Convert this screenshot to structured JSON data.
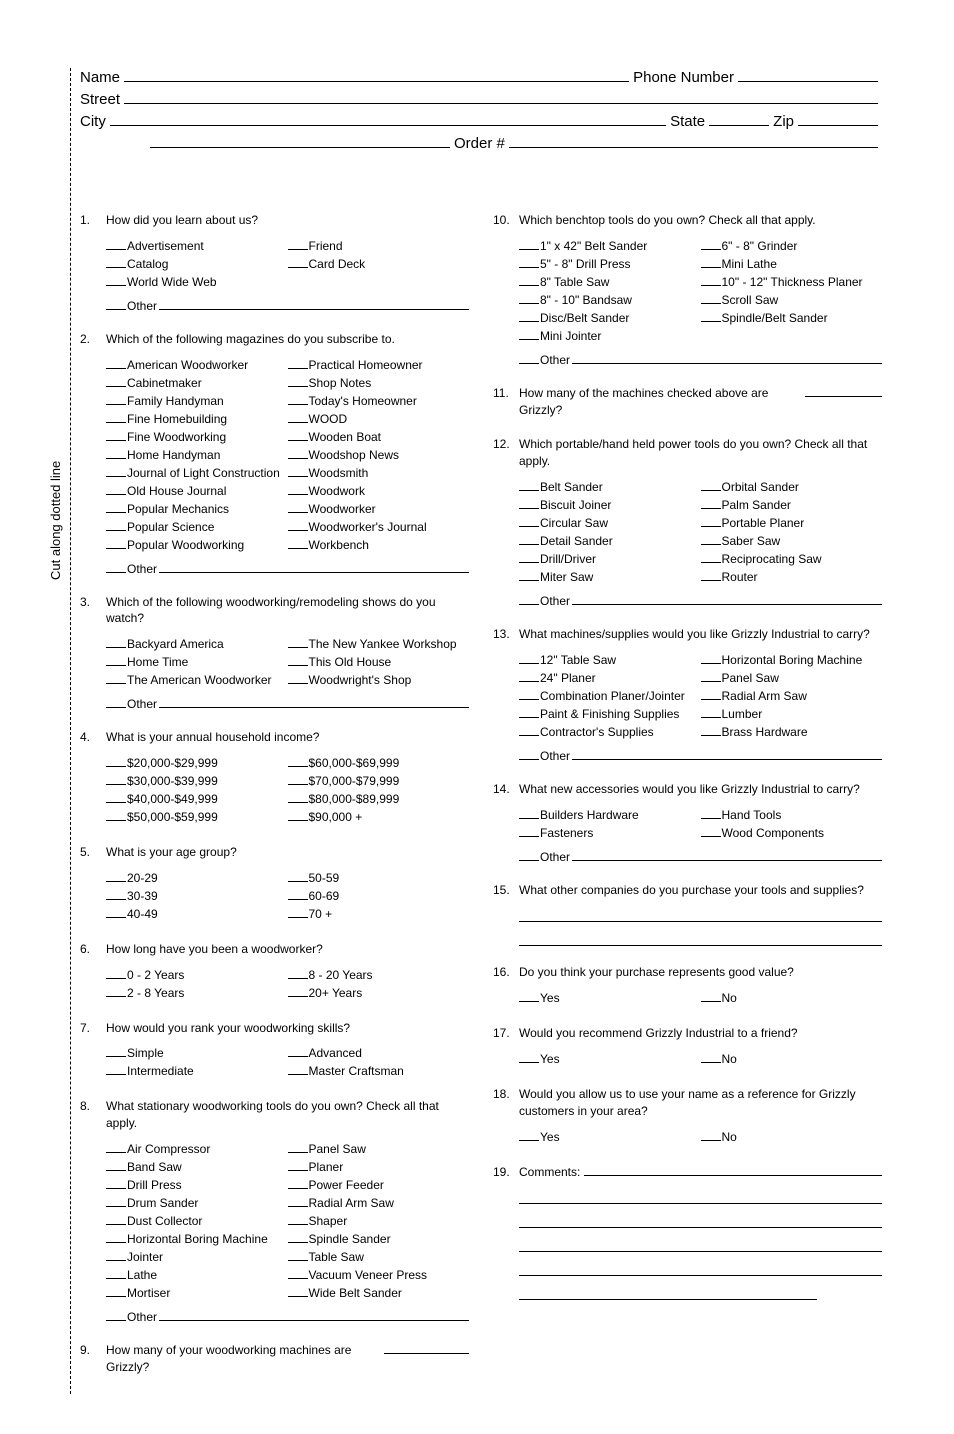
{
  "cut_label": "Cut along dotted line",
  "header": {
    "name": "Name",
    "phone": "Phone Number",
    "street": "Street",
    "city": "City",
    "state": "State",
    "zip": "Zip",
    "order": "Order #"
  },
  "q1": {
    "num": "1.",
    "text": "How did you learn about us?",
    "left": [
      "Advertisement",
      "Catalog",
      "World Wide Web"
    ],
    "right": [
      "Friend",
      "Card Deck"
    ],
    "other": "Other"
  },
  "q2": {
    "num": "2.",
    "text": "Which of the following magazines do you subscribe to.",
    "left": [
      "American Woodworker",
      "Cabinetmaker",
      "Family Handyman",
      "Fine Homebuilding",
      "Fine Woodworking",
      "Home Handyman",
      "Journal of Light Construction",
      "Old House Journal",
      "Popular Mechanics",
      "Popular Science",
      "Popular Woodworking"
    ],
    "right": [
      "Practical Homeowner",
      "Shop Notes",
      "Today's Homeowner",
      "WOOD",
      "Wooden Boat",
      "Woodshop News",
      "Woodsmith",
      "Woodwork",
      "Woodworker",
      "Woodworker's Journal",
      "Workbench"
    ],
    "other": "Other"
  },
  "q3": {
    "num": "3.",
    "text": "Which of the following woodworking/remodeling shows do you watch?",
    "left": [
      "Backyard America",
      "Home Time",
      "The American Woodworker"
    ],
    "right": [
      "The New Yankee Workshop",
      "This Old House",
      "Woodwright's Shop"
    ],
    "other": "Other"
  },
  "q4": {
    "num": "4.",
    "text": "What is your annual household income?",
    "left": [
      "$20,000-$29,999",
      "$30,000-$39,999",
      "$40,000-$49,999",
      "$50,000-$59,999"
    ],
    "right": [
      "$60,000-$69,999",
      "$70,000-$79,999",
      "$80,000-$89,999",
      "$90,000 +"
    ]
  },
  "q5": {
    "num": "5.",
    "text": "What is your age group?",
    "left": [
      "20-29",
      "30-39",
      "40-49"
    ],
    "right": [
      "50-59",
      "60-69",
      "70 +"
    ]
  },
  "q6": {
    "num": "6.",
    "text": "How long have you been a woodworker?",
    "left": [
      "0 - 2 Years",
      "2 - 8 Years"
    ],
    "right": [
      "8 - 20 Years",
      "20+ Years"
    ]
  },
  "q7": {
    "num": "7.",
    "text": "How would you rank your woodworking skills?",
    "left": [
      "Simple",
      "Intermediate"
    ],
    "right": [
      "Advanced",
      "Master Craftsman"
    ]
  },
  "q8": {
    "num": "8.",
    "text": "What stationary woodworking tools do you own? Check all that apply.",
    "left": [
      "Air Compressor",
      "Band Saw",
      "Drill Press",
      "Drum Sander",
      "Dust Collector",
      "Horizontal Boring Machine",
      "Jointer",
      "Lathe",
      "Mortiser"
    ],
    "right": [
      "Panel Saw",
      "Planer",
      "Power Feeder",
      "Radial Arm Saw",
      "Shaper",
      "Spindle Sander",
      "Table Saw",
      "Vacuum Veneer Press",
      "Wide Belt Sander"
    ],
    "other": "Other"
  },
  "q9": {
    "num": "9.",
    "text": "How many of your woodworking machines are Grizzly? "
  },
  "q10": {
    "num": "10.",
    "text": "Which benchtop tools do you own? Check all that apply.",
    "left": [
      "1\" x 42\" Belt Sander",
      "5\" - 8\" Drill Press",
      "8\" Table Saw",
      "8\" - 10\" Bandsaw",
      "Disc/Belt Sander",
      "Mini Jointer"
    ],
    "right": [
      "6\" - 8\" Grinder",
      "Mini Lathe",
      "10\" - 12\" Thickness Planer",
      "Scroll Saw",
      "Spindle/Belt Sander"
    ],
    "other": "Other"
  },
  "q11": {
    "num": "11.",
    "text": "How many of the machines checked above are Grizzly? "
  },
  "q12": {
    "num": "12.",
    "text": "Which portable/hand held power tools do you own? Check all that apply.",
    "left": [
      "Belt Sander",
      "Biscuit Joiner",
      "Circular Saw",
      "Detail Sander",
      "Drill/Driver",
      "Miter Saw"
    ],
    "right": [
      "Orbital Sander",
      "Palm Sander",
      "Portable Planer",
      "Saber Saw",
      "Reciprocating Saw",
      "Router"
    ],
    "other": "Other"
  },
  "q13": {
    "num": "13.",
    "text": "What machines/supplies would you like Grizzly Industrial to carry?",
    "left": [
      "12\" Table Saw",
      "24\" Planer",
      "Combination Planer/Jointer",
      "Paint & Finishing Supplies",
      "Contractor's Supplies"
    ],
    "right": [
      "Horizontal Boring Machine",
      "Panel Saw",
      "Radial Arm Saw",
      "Lumber",
      "Brass Hardware"
    ],
    "other": "Other"
  },
  "q14": {
    "num": "14.",
    "text": "What new accessories would you like Grizzly Industrial to carry?",
    "left": [
      "Builders Hardware",
      "Fasteners"
    ],
    "right": [
      "Hand Tools",
      "Wood Components"
    ],
    "other": "Other"
  },
  "q15": {
    "num": "15.",
    "text": "What other companies do you purchase your tools and supplies?"
  },
  "q16": {
    "num": "16.",
    "text": "Do you think your purchase represents good value?",
    "left": [
      "Yes"
    ],
    "right": [
      "No"
    ]
  },
  "q17": {
    "num": "17.",
    "text": "Would you recommend Grizzly Industrial to a friend?",
    "left": [
      "Yes"
    ],
    "right": [
      "No"
    ]
  },
  "q18": {
    "num": "18.",
    "text": "Would you allow us to use your name as a reference for Grizzly customers in your area?",
    "left": [
      "Yes"
    ],
    "right": [
      "No"
    ]
  },
  "q19": {
    "num": "19.",
    "text": "Comments:"
  }
}
